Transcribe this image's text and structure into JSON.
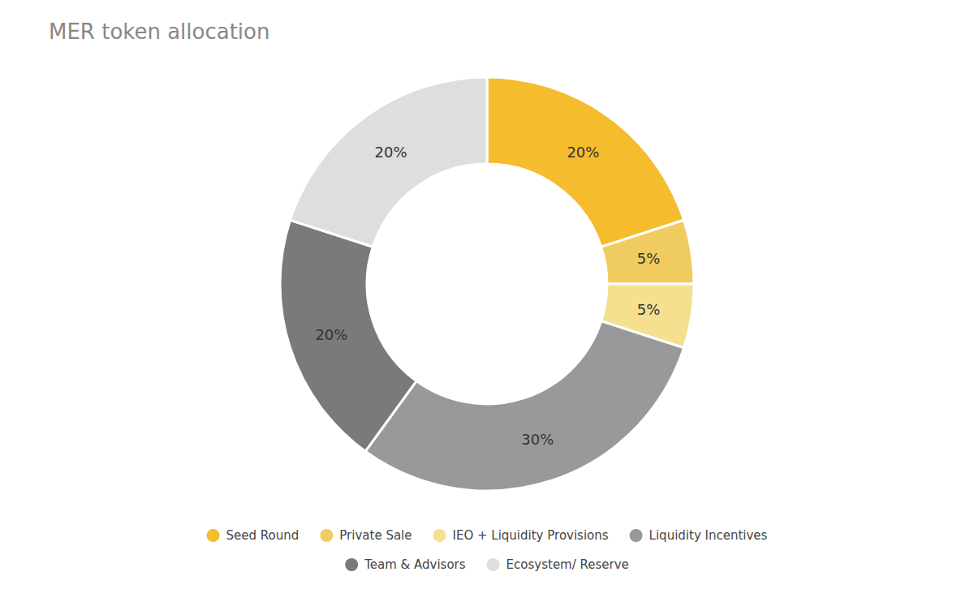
{
  "chart_data": {
    "type": "donut",
    "title": "MER token allocation",
    "categories": [
      "Seed Round",
      "Private Sale",
      "IEO + Liquidity Provisions",
      "Liquidity Incentives",
      "Team & Advisors",
      "Ecosystem/ Reserve"
    ],
    "values": [
      20,
      5,
      5,
      30,
      20,
      20
    ],
    "value_labels": [
      "20%",
      "5%",
      "5%",
      "30%",
      "20%",
      "20%"
    ],
    "colors": [
      "#F5BC2E",
      "#F0CC60",
      "#F5E090",
      "#999999",
      "#7A7A7A",
      "#DEDEDE"
    ],
    "data_labels": true,
    "legend": "bottom"
  }
}
